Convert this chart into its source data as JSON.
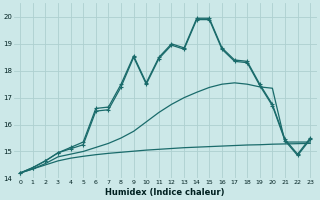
{
  "xlabel": "Humidex (Indice chaleur)",
  "background_color": "#cce8e8",
  "grid_color": "#aed0d0",
  "line_color": "#1a6b6b",
  "xlim": [
    -0.5,
    23.5
  ],
  "ylim": [
    14.0,
    20.5
  ],
  "yticks": [
    14,
    15,
    16,
    17,
    18,
    19,
    20
  ],
  "xticks": [
    0,
    1,
    2,
    3,
    4,
    5,
    6,
    7,
    8,
    9,
    10,
    11,
    12,
    13,
    14,
    15,
    16,
    17,
    18,
    19,
    20,
    21,
    22,
    23
  ],
  "series1_x": [
    0,
    1,
    2,
    3,
    4,
    5,
    6,
    7,
    8,
    9,
    10,
    11,
    12,
    13,
    14,
    15,
    16,
    17,
    18,
    19,
    20,
    21,
    22,
    23
  ],
  "series1_y": [
    14.2,
    14.35,
    14.5,
    14.65,
    14.75,
    14.82,
    14.88,
    14.93,
    14.97,
    15.01,
    15.05,
    15.08,
    15.11,
    15.14,
    15.16,
    15.18,
    15.2,
    15.22,
    15.24,
    15.25,
    15.27,
    15.28,
    15.29,
    15.3
  ],
  "series2_x": [
    0,
    1,
    2,
    3,
    4,
    5,
    6,
    7,
    8,
    9,
    10,
    11,
    12,
    13,
    14,
    15,
    16,
    17,
    18,
    19,
    20,
    21,
    22,
    23
  ],
  "series2_y": [
    14.2,
    14.35,
    14.55,
    14.8,
    14.9,
    15.0,
    15.15,
    15.3,
    15.5,
    15.75,
    16.1,
    16.45,
    16.75,
    17.0,
    17.2,
    17.38,
    17.5,
    17.55,
    17.5,
    17.4,
    17.35,
    15.35,
    15.35,
    15.35
  ],
  "series3_x": [
    0,
    1,
    2,
    3,
    4,
    5,
    6,
    7,
    8,
    9,
    10,
    11,
    12,
    13,
    14,
    15,
    16,
    17,
    18,
    19,
    20,
    21,
    22,
    23
  ],
  "series3_y": [
    14.2,
    14.4,
    14.65,
    14.95,
    15.15,
    15.35,
    16.6,
    16.65,
    17.5,
    18.55,
    17.55,
    18.5,
    19.0,
    18.85,
    19.95,
    19.95,
    18.85,
    18.4,
    18.35,
    17.5,
    16.75,
    15.45,
    14.9,
    15.5
  ],
  "series4_x": [
    0,
    1,
    2,
    3,
    4,
    5,
    6,
    7,
    8,
    9,
    10,
    11,
    12,
    13,
    14,
    15,
    16,
    17,
    18,
    19,
    20,
    21,
    22,
    23
  ],
  "series4_y": [
    14.2,
    14.4,
    14.65,
    14.95,
    15.1,
    15.25,
    16.5,
    16.55,
    17.4,
    18.5,
    17.5,
    18.45,
    18.95,
    18.8,
    19.9,
    19.9,
    18.8,
    18.35,
    18.3,
    17.45,
    16.7,
    15.4,
    14.85,
    15.45
  ]
}
